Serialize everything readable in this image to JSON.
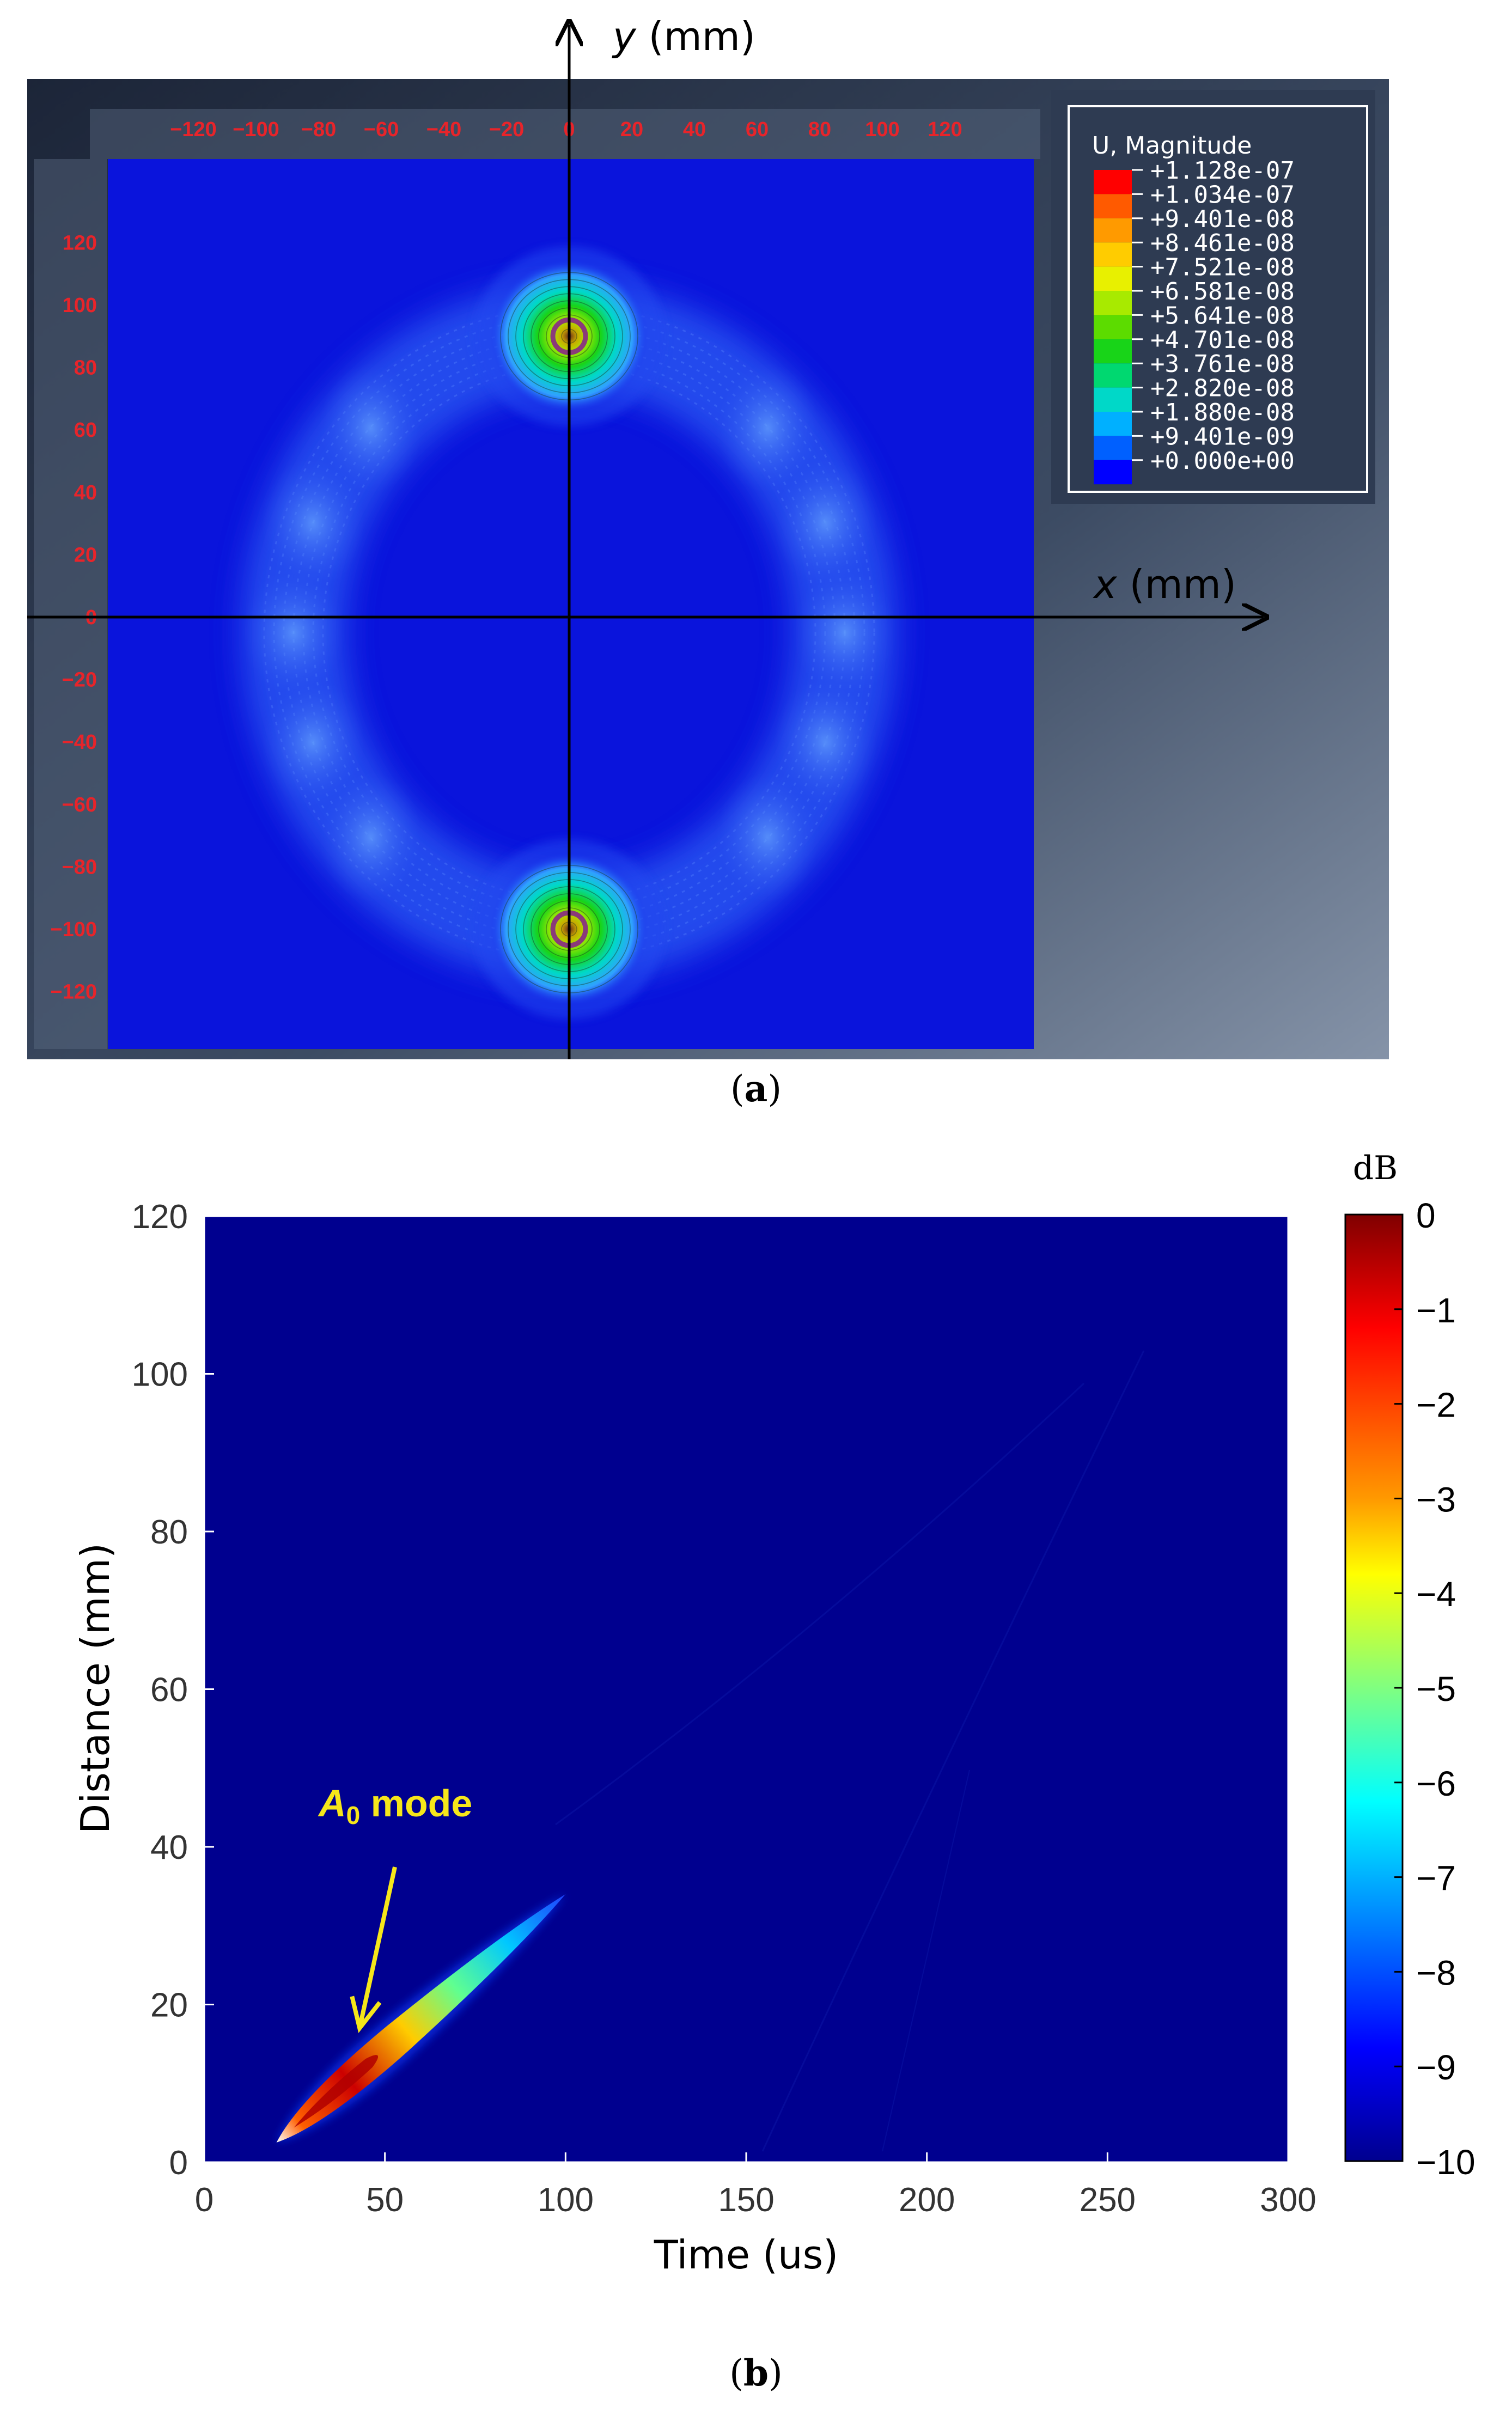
{
  "chart_data": [
    {
      "type": "heatmap",
      "panel_label": "(a)",
      "panel_letter": "a",
      "legend": {
        "title": "U, Magnitude",
        "values": [
          "+1.128e-07",
          "+1.034e-07",
          "+9.401e-08",
          "+8.461e-08",
          "+7.521e-08",
          "+6.581e-08",
          "+5.641e-08",
          "+4.701e-08",
          "+3.761e-08",
          "+2.820e-08",
          "+1.880e-08",
          "+9.401e-09",
          "+0.000e+00"
        ],
        "colors": [
          "#ff0000",
          "#ff5a00",
          "#ff9a00",
          "#ffcc00",
          "#e8f000",
          "#a8ea00",
          "#5cdc00",
          "#18d418",
          "#00d870",
          "#00d8c8",
          "#00b0ff",
          "#0060ff",
          "#0000ff"
        ]
      },
      "x_ticks": [
        "−120",
        "−100",
        "−80",
        "−60",
        "−40",
        "−20",
        "0",
        "20",
        "40",
        "60",
        "80",
        "100",
        "120"
      ],
      "x_tick_values": [
        -120,
        -100,
        -80,
        -60,
        -40,
        -20,
        0,
        20,
        40,
        60,
        80,
        100,
        120
      ],
      "y_ticks": [
        "120",
        "100",
        "80",
        "60",
        "40",
        "20",
        "0",
        "−20",
        "−40",
        "−60",
        "−80",
        "−100",
        "−120"
      ],
      "y_tick_values": [
        120,
        100,
        80,
        60,
        40,
        20,
        0,
        -20,
        -40,
        -60,
        -80,
        -100,
        -120
      ],
      "xlabel_var": "x",
      "xlabel_unit": " (mm)",
      "ylabel_var": "y",
      "ylabel_unit": " (mm)",
      "xlim": [
        -120,
        120
      ],
      "ylim": [
        -120,
        120
      ],
      "peaks": [
        {
          "x": 0,
          "y": 90
        },
        {
          "x": 0,
          "y": -100
        }
      ],
      "ring": {
        "center_x": 0,
        "center_y": -5,
        "radius_x": 88,
        "radius_y": 95
      },
      "colors": {
        "background": "#0a14dc",
        "frame": "#3b4c66"
      }
    },
    {
      "type": "heatmap",
      "panel_label": "(b)",
      "panel_letter": "b",
      "xlabel": "Time (us)",
      "ylabel": "Distance (mm)",
      "xlim": [
        0,
        300
      ],
      "ylim": [
        0,
        120
      ],
      "x_ticks": [
        0,
        50,
        100,
        150,
        200,
        250,
        300
      ],
      "y_ticks": [
        0,
        20,
        40,
        60,
        80,
        100,
        120
      ],
      "colorbar": {
        "unit": "dB",
        "ticks": [
          "0",
          "−1",
          "−2",
          "−3",
          "−4",
          "−5",
          "−6",
          "−7",
          "−8",
          "−9",
          "−10"
        ],
        "tick_values": [
          0,
          -1,
          -2,
          -3,
          -4,
          -5,
          -6,
          -7,
          -8,
          -9,
          -10
        ],
        "range": [
          -10,
          0
        ]
      },
      "annotation": {
        "text_main": "A",
        "text_sub": "0",
        "text_rest": " mode",
        "arrow_tip": {
          "x": 43,
          "y": 17
        }
      },
      "mode_band": {
        "start": {
          "time": 20,
          "distance": 2.5
        },
        "end": {
          "time": 100,
          "distance": 34
        }
      },
      "colors": {
        "background": "#00008f"
      }
    }
  ]
}
